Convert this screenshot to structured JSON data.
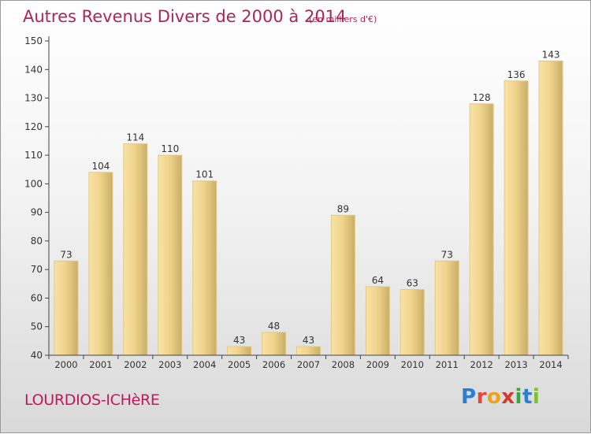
{
  "title": "Autres Revenus Divers de 2000 à 2014",
  "subtitle": "(en milliers d'€)",
  "commune": "LOURDIOS-ICHèRE",
  "logo": {
    "p": "P",
    "r": "r",
    "o": "o",
    "x": "x",
    "i1": "i",
    "t": "t",
    "i2": "i"
  },
  "colors": {
    "title": "#b0245a",
    "bar_light": "#f5dc98",
    "bar_dark": "#c5ab64"
  },
  "chart_data": {
    "type": "bar",
    "categories": [
      "2000",
      "2001",
      "2002",
      "2003",
      "2004",
      "2005",
      "2006",
      "2007",
      "2008",
      "2009",
      "2010",
      "2011",
      "2012",
      "2013",
      "2014"
    ],
    "values": [
      73,
      104,
      114,
      110,
      101,
      43,
      48,
      43,
      89,
      64,
      63,
      73,
      128,
      136,
      143
    ],
    "ylim": [
      40,
      150
    ],
    "yticks": [
      40,
      50,
      60,
      70,
      80,
      90,
      100,
      110,
      120,
      130,
      140,
      150
    ],
    "grid": false,
    "legend": "none"
  }
}
